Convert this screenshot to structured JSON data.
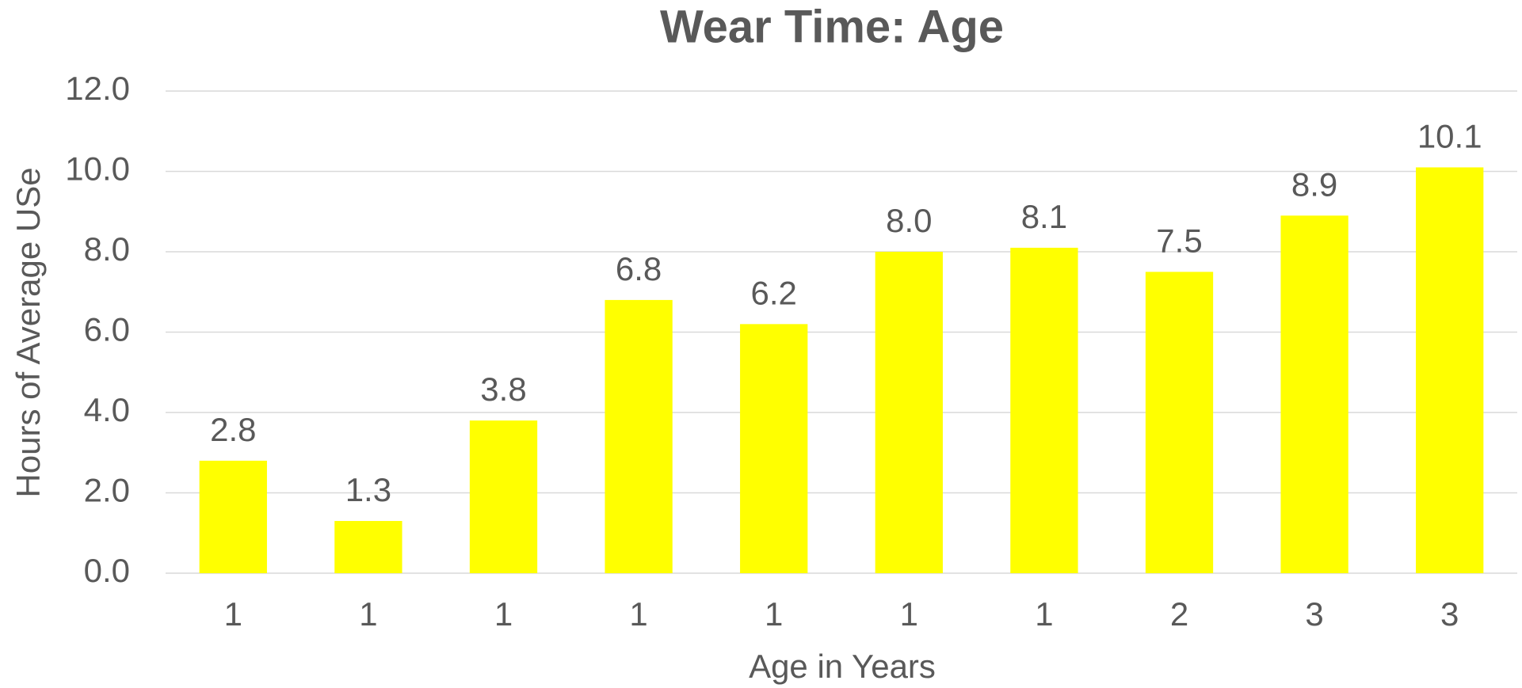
{
  "chart_data": {
    "type": "bar",
    "title": "Wear Time: Age",
    "x_label": "Age in Years",
    "y_label": "Hours of Average USe",
    "categories": [
      "1",
      "1",
      "1",
      "1",
      "1",
      "1",
      "1",
      "2",
      "3",
      "3"
    ],
    "values": [
      2.8,
      1.3,
      3.8,
      6.8,
      6.2,
      8.0,
      8.1,
      7.5,
      8.9,
      10.1
    ],
    "value_labels": [
      "2.8",
      "1.3",
      "3.8",
      "6.8",
      "6.2",
      "8.0",
      "8.1",
      "7.5",
      "8.9",
      "10.1"
    ],
    "color": "#ffff00",
    "ylim": [
      0,
      12
    ],
    "yticks": [
      {
        "value": 0,
        "label": "0.0"
      },
      {
        "value": 2,
        "label": "2.0"
      },
      {
        "value": 4,
        "label": "4.0"
      },
      {
        "value": 6,
        "label": "6.0"
      },
      {
        "value": 8,
        "label": "8.0"
      },
      {
        "value": 10,
        "label": "10.0"
      },
      {
        "value": 12,
        "label": "12.0"
      }
    ],
    "grid": true
  }
}
